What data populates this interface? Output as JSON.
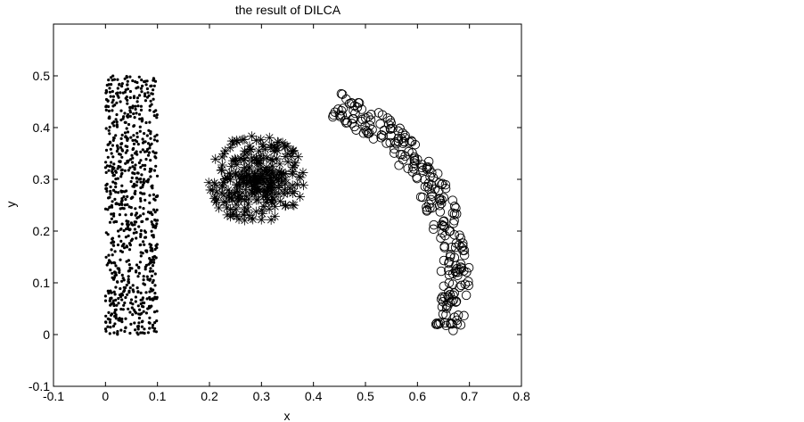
{
  "chart_data": {
    "type": "scatter",
    "title": "the result of DILCA",
    "xlabel": "x",
    "ylabel": "y",
    "xlim": [
      -0.1,
      0.8
    ],
    "ylim": [
      -0.1,
      0.6
    ],
    "xticks": [
      "-0.1",
      "0",
      "0.1",
      "0.2",
      "0.3",
      "0.4",
      "0.5",
      "0.6",
      "0.7",
      "0.8"
    ],
    "yticks": [
      "-0.1",
      "0",
      "0.1",
      "0.2",
      "0.3",
      "0.4",
      "0.5"
    ],
    "grid": false,
    "series": [
      {
        "marker": "dot",
        "color": "#000000",
        "shape": "rectangle",
        "x_range": [
          0.0,
          0.1
        ],
        "y_range": [
          0.0,
          0.5
        ],
        "count": 800,
        "seed": 11
      },
      {
        "marker": "asterisk",
        "color": "#000000",
        "shape": "disk",
        "center": [
          0.29,
          0.3
        ],
        "radius": 0.095,
        "count": 300,
        "seed": 23
      },
      {
        "marker": "circle",
        "color": "#000000",
        "shape": "arc-band",
        "arc_center": [
          0.305,
          0.105
        ],
        "radii": [
          0.34,
          0.395
        ],
        "angle_deg": [
          -15,
          68
        ],
        "count": 250,
        "seed": 37
      }
    ]
  }
}
